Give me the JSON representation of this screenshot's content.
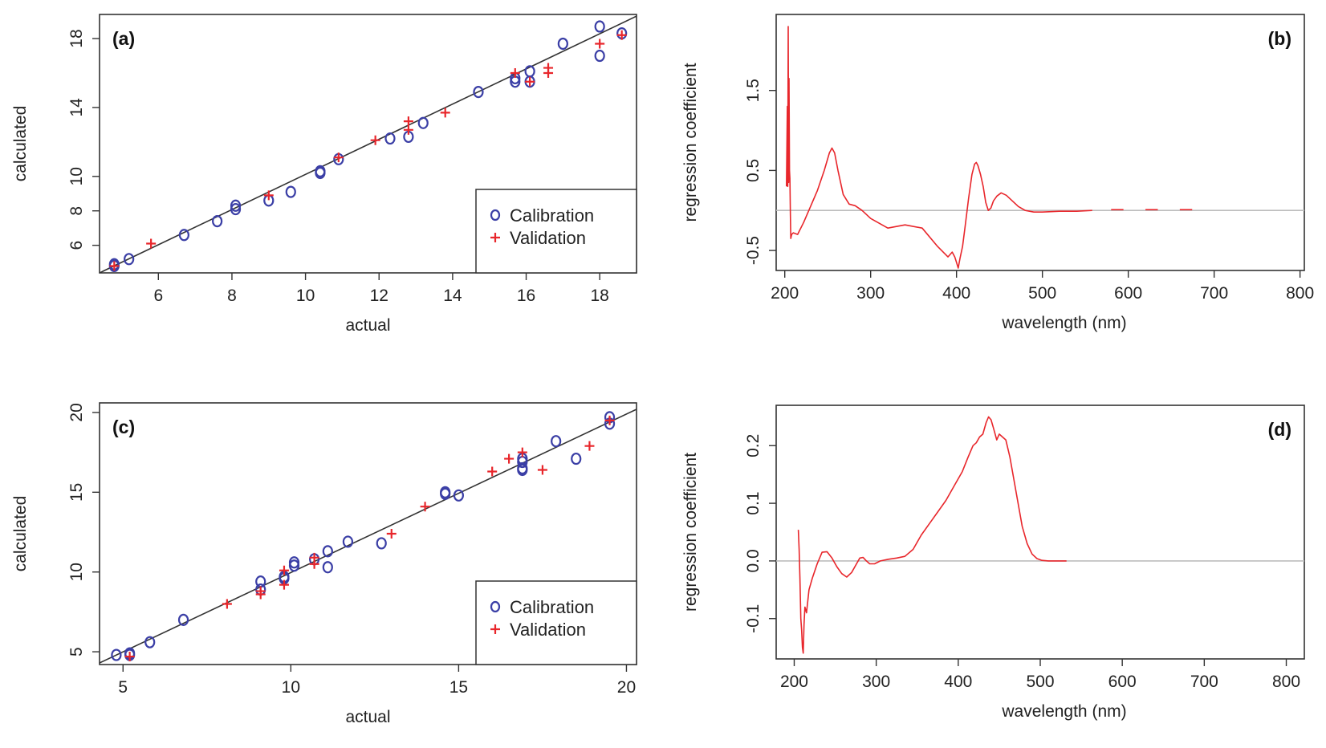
{
  "chart_data": [
    {
      "id": "a",
      "type": "scatter",
      "panel_label": "(a)",
      "xlabel": "actual",
      "ylabel": "calculated",
      "xlim": [
        4.4,
        19.0
      ],
      "ylim": [
        4.4,
        19.4
      ],
      "xticks": [
        6,
        8,
        10,
        12,
        14,
        16,
        18
      ],
      "yticks": [
        6,
        8,
        10,
        14,
        18
      ],
      "legend": {
        "position": "bottom-right",
        "entries": [
          "Calibration",
          "Validation"
        ]
      },
      "reference_line": {
        "from": [
          4.4,
          4.4
        ],
        "to": [
          19.0,
          19.3
        ]
      },
      "series": [
        {
          "name": "Calibration",
          "marker": "circle",
          "color": "#3b3fa6",
          "points": [
            [
              4.8,
              4.8
            ],
            [
              4.8,
              4.9
            ],
            [
              5.2,
              5.2
            ],
            [
              6.7,
              6.6
            ],
            [
              7.6,
              7.4
            ],
            [
              8.1,
              8.1
            ],
            [
              8.1,
              8.3
            ],
            [
              9.0,
              8.6
            ],
            [
              9.6,
              9.1
            ],
            [
              10.4,
              10.2
            ],
            [
              10.4,
              10.3
            ],
            [
              10.9,
              11.0
            ],
            [
              12.3,
              12.2
            ],
            [
              12.8,
              12.3
            ],
            [
              13.2,
              13.1
            ],
            [
              14.7,
              14.9
            ],
            [
              15.7,
              15.5
            ],
            [
              15.7,
              15.7
            ],
            [
              16.1,
              15.5
            ],
            [
              16.1,
              16.1
            ],
            [
              17.0,
              17.7
            ],
            [
              18.0,
              17.0
            ],
            [
              18.0,
              18.7
            ],
            [
              18.6,
              18.3
            ]
          ]
        },
        {
          "name": "Validation",
          "marker": "plus",
          "color": "#e8262b",
          "points": [
            [
              4.8,
              4.8
            ],
            [
              5.8,
              6.1
            ],
            [
              9.0,
              8.9
            ],
            [
              10.9,
              11.1
            ],
            [
              11.9,
              12.1
            ],
            [
              12.8,
              12.7
            ],
            [
              12.8,
              13.2
            ],
            [
              13.8,
              13.7
            ],
            [
              15.7,
              16.0
            ],
            [
              16.1,
              15.5
            ],
            [
              16.6,
              16.0
            ],
            [
              16.6,
              16.3
            ],
            [
              18.0,
              17.7
            ],
            [
              18.6,
              18.2
            ]
          ]
        }
      ]
    },
    {
      "id": "b",
      "type": "line",
      "panel_label": "(b)",
      "xlabel": "wavelength (nm)",
      "ylabel": "regression coefficient",
      "xlim": [
        190,
        805
      ],
      "ylim": [
        -0.75,
        2.45
      ],
      "xticks": [
        200,
        300,
        400,
        500,
        600,
        700,
        800
      ],
      "yticks": [
        -0.5,
        0.5,
        1.5
      ],
      "ytick_labels": [
        "-0.5",
        "0.5",
        "1.5"
      ],
      "zero_line": 0,
      "series": [
        {
          "name": "coefficient",
          "color": "#e8262b",
          "x": [
            202,
            203,
            203.5,
            204,
            204.5,
            205,
            205.5,
            206,
            206.5,
            207,
            208,
            210,
            215,
            222,
            230,
            238,
            246,
            252,
            255,
            258,
            262,
            268,
            275,
            282,
            290,
            300,
            320,
            340,
            360,
            378,
            390,
            395,
            398,
            400,
            402,
            404,
            407,
            410,
            414,
            418,
            421,
            423,
            425,
            428,
            431,
            434,
            437,
            440,
            443,
            447,
            452,
            458,
            465,
            472,
            480,
            490,
            500,
            520,
            540,
            558
          ],
          "y": [
            0.3,
            1.3,
            0.3,
            2.3,
            0.35,
            1.65,
            0.5,
            0.4,
            -0.05,
            -0.35,
            -0.3,
            -0.28,
            -0.3,
            -0.15,
            0.05,
            0.25,
            0.5,
            0.72,
            0.78,
            0.72,
            0.5,
            0.2,
            0.08,
            0.06,
            0.0,
            -0.1,
            -0.22,
            -0.18,
            -0.22,
            -0.45,
            -0.58,
            -0.52,
            -0.58,
            -0.65,
            -0.72,
            -0.6,
            -0.45,
            -0.2,
            0.15,
            0.45,
            0.58,
            0.6,
            0.56,
            0.45,
            0.3,
            0.1,
            0.0,
            0.03,
            0.12,
            0.18,
            0.22,
            0.19,
            0.12,
            0.05,
            0.0,
            -0.02,
            -0.02,
            -0.01,
            -0.01,
            0.0
          ]
        },
        {
          "name": "coefficient (dashed tail)",
          "color": "#e8262b",
          "dashed": true,
          "x": [
            580,
            600,
            620,
            640,
            660,
            680,
            700
          ],
          "y": [
            0.01,
            0.01,
            0.01,
            0.01,
            0.01,
            0.01,
            0.01
          ]
        }
      ]
    },
    {
      "id": "c",
      "type": "scatter",
      "panel_label": "(c)",
      "xlabel": "actual",
      "ylabel": "calculated",
      "xlim": [
        4.3,
        20.3
      ],
      "ylim": [
        4.2,
        20.6
      ],
      "xticks": [
        5,
        10,
        15,
        20
      ],
      "yticks": [
        5,
        10,
        15,
        20
      ],
      "legend": {
        "position": "bottom-right",
        "entries": [
          "Calibration",
          "Validation"
        ]
      },
      "reference_line": {
        "from": [
          4.3,
          4.3
        ],
        "to": [
          20.3,
          20.2
        ]
      },
      "series": [
        {
          "name": "Calibration",
          "marker": "circle",
          "color": "#3b3fa6",
          "points": [
            [
              4.8,
              4.8
            ],
            [
              5.2,
              4.8
            ],
            [
              5.2,
              4.9
            ],
            [
              5.8,
              5.6
            ],
            [
              6.8,
              7.0
            ],
            [
              9.1,
              8.9
            ],
            [
              9.1,
              9.4
            ],
            [
              9.8,
              9.6
            ],
            [
              9.8,
              9.7
            ],
            [
              10.1,
              10.4
            ],
            [
              10.1,
              10.6
            ],
            [
              10.7,
              10.8
            ],
            [
              11.1,
              10.3
            ],
            [
              11.1,
              11.3
            ],
            [
              11.7,
              11.9
            ],
            [
              12.7,
              11.8
            ],
            [
              14.6,
              14.9
            ],
            [
              14.6,
              15.0
            ],
            [
              15.0,
              14.8
            ],
            [
              16.9,
              16.4
            ],
            [
              16.9,
              16.5
            ],
            [
              16.9,
              16.9
            ],
            [
              16.9,
              17.1
            ],
            [
              17.9,
              18.2
            ],
            [
              18.5,
              17.1
            ],
            [
              19.5,
              19.3
            ],
            [
              19.5,
              19.7
            ]
          ]
        },
        {
          "name": "Validation",
          "marker": "plus",
          "color": "#e8262b",
          "points": [
            [
              5.2,
              4.7
            ],
            [
              8.1,
              8.0
            ],
            [
              9.1,
              8.6
            ],
            [
              9.1,
              8.8
            ],
            [
              9.8,
              9.2
            ],
            [
              9.8,
              10.1
            ],
            [
              10.7,
              10.5
            ],
            [
              10.7,
              10.9
            ],
            [
              13.0,
              12.4
            ],
            [
              14.0,
              14.1
            ],
            [
              16.0,
              16.3
            ],
            [
              16.5,
              17.1
            ],
            [
              16.9,
              17.5
            ],
            [
              17.5,
              16.4
            ],
            [
              18.9,
              17.9
            ],
            [
              19.5,
              19.5
            ]
          ]
        }
      ]
    },
    {
      "id": "d",
      "type": "line",
      "panel_label": "(d)",
      "xlabel": "wavelength (nm)",
      "ylabel": "regression coefficient",
      "xlim": [
        178,
        822
      ],
      "ylim": [
        -0.17,
        0.27
      ],
      "xticks": [
        200,
        300,
        400,
        500,
        600,
        700,
        800
      ],
      "yticks": [
        -0.1,
        0.0,
        0.1,
        0.2
      ],
      "ytick_labels": [
        "-0.1",
        "0.0",
        "0.1",
        "0.2"
      ],
      "zero_line": 0,
      "series": [
        {
          "name": "coefficient",
          "color": "#e8262b",
          "x": [
            205,
            206,
            207,
            208,
            209,
            210,
            211,
            212,
            213,
            215,
            218,
            222,
            228,
            234,
            240,
            246,
            252,
            258,
            264,
            270,
            276,
            280,
            284,
            288,
            292,
            298,
            305,
            315,
            325,
            335,
            345,
            355,
            365,
            375,
            385,
            395,
            405,
            412,
            418,
            422,
            426,
            430,
            434,
            437,
            440,
            443,
            447,
            450,
            454,
            458,
            463,
            468,
            473,
            478,
            484,
            490,
            496,
            502,
            510,
            520,
            532
          ],
          "x_note": "",
          "y": [
            0.054,
            0.02,
            -0.03,
            -0.1,
            -0.12,
            -0.15,
            -0.16,
            -0.11,
            -0.08,
            -0.09,
            -0.05,
            -0.03,
            -0.005,
            0.015,
            0.016,
            0.005,
            -0.01,
            -0.022,
            -0.028,
            -0.02,
            -0.005,
            0.005,
            0.006,
            0.0,
            -0.005,
            -0.005,
            0.0,
            0.003,
            0.005,
            0.008,
            0.02,
            0.045,
            0.065,
            0.085,
            0.105,
            0.13,
            0.155,
            0.18,
            0.2,
            0.205,
            0.215,
            0.22,
            0.24,
            0.25,
            0.245,
            0.23,
            0.21,
            0.22,
            0.215,
            0.21,
            0.18,
            0.14,
            0.1,
            0.06,
            0.03,
            0.012,
            0.004,
            0.001,
            0.0,
            0.0,
            0.0
          ]
        }
      ]
    }
  ]
}
